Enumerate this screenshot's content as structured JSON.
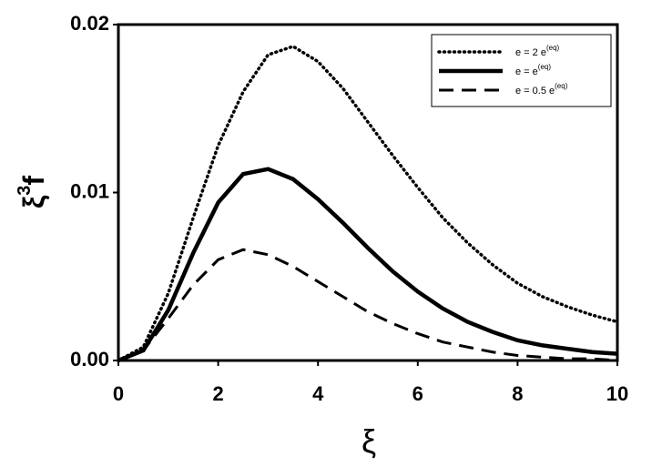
{
  "chart_data": {
    "type": "line",
    "xlabel": "ξ",
    "ylabel": {
      "base": "ξ",
      "sup": "3",
      "tail": "f"
    },
    "x": [
      0,
      0.5,
      1,
      1.5,
      2,
      2.5,
      3,
      3.5,
      4,
      4.5,
      5,
      5.5,
      6,
      6.5,
      7,
      7.5,
      8,
      8.5,
      9,
      9.5,
      10
    ],
    "series": [
      {
        "name": "e = 2 e",
        "name_sup": "(eq)",
        "color": "#000000",
        "style": "dotted",
        "values": [
          0,
          0.0008,
          0.004,
          0.0085,
          0.0128,
          0.016,
          0.0182,
          0.0187,
          0.0178,
          0.0162,
          0.0142,
          0.0122,
          0.0103,
          0.0085,
          0.007,
          0.0057,
          0.0046,
          0.0038,
          0.0032,
          0.0027,
          0.0023
        ]
      },
      {
        "name": "e = e",
        "name_sup": "(eq)",
        "color": "#000000",
        "style": "solid",
        "values": [
          0,
          0.0006,
          0.003,
          0.0064,
          0.0094,
          0.0111,
          0.0114,
          0.0108,
          0.0096,
          0.0082,
          0.0067,
          0.0053,
          0.0041,
          0.0031,
          0.0023,
          0.0017,
          0.0012,
          0.0009,
          0.0007,
          0.0005,
          0.0004
        ]
      },
      {
        "name": "e = 0.5 e",
        "name_sup": "(eq)",
        "color": "#000000",
        "style": "dashed",
        "values": [
          0,
          0.0006,
          0.0025,
          0.0045,
          0.006,
          0.0066,
          0.0063,
          0.0056,
          0.0047,
          0.0038,
          0.0029,
          0.0022,
          0.0016,
          0.0011,
          0.0008,
          0.0005,
          0.0003,
          0.0002,
          0.0001,
          0.0001,
          0
        ]
      }
    ],
    "xlim": [
      0,
      10
    ],
    "xticks": [
      0,
      2,
      4,
      6,
      8,
      10
    ],
    "ylim": [
      0,
      0.02
    ],
    "yticks": [
      {
        "value": 0,
        "label": "0.00"
      },
      0.01,
      0.02
    ],
    "legend": "upper right",
    "grid": false
  }
}
